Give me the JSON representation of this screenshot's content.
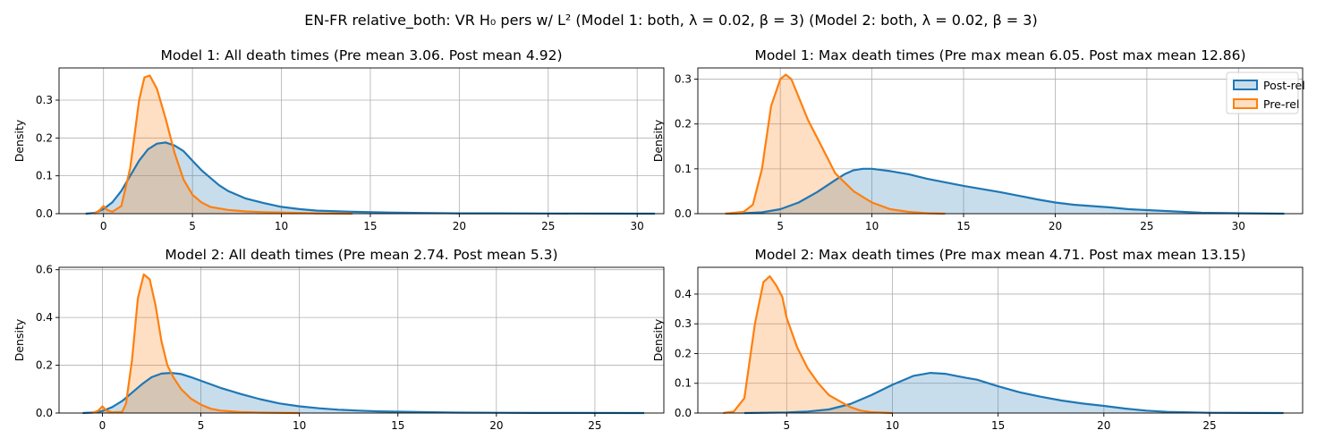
{
  "figure": {
    "suptitle": "EN-FR relative_both: VR H₀ pers w/ L² (Model 1: both, λ = 0.02, β = 3) (Model 2: both, λ = 0.02, β = 3)"
  },
  "colors": {
    "post": "#1f77b4",
    "pre": "#ff7f0e",
    "grid": "#b0b0b0"
  },
  "chart_data": [
    {
      "type": "area",
      "title": "Model 1: All death times (Pre mean 3.06. Post mean 4.92)",
      "xlabel": "",
      "ylabel": "Density",
      "xlim": [
        -2.5,
        31.5
      ],
      "ylim": [
        0,
        0.385
      ],
      "xticks": [
        0,
        5,
        10,
        15,
        20,
        25,
        30
      ],
      "yticks": [
        0.0,
        0.1,
        0.2,
        0.3
      ],
      "grid": true,
      "legend": null,
      "series": [
        {
          "key": "post",
          "name": "Post-rel",
          "x": [
            -1,
            -0.5,
            0,
            0.5,
            1,
            1.5,
            2,
            2.5,
            3,
            3.5,
            4,
            4.5,
            5,
            5.5,
            6,
            6.5,
            7,
            8,
            9,
            10,
            11,
            12,
            14,
            16,
            18,
            20,
            22,
            25,
            28,
            31
          ],
          "y": [
            0,
            0.002,
            0.012,
            0.03,
            0.06,
            0.1,
            0.14,
            0.17,
            0.185,
            0.188,
            0.18,
            0.165,
            0.14,
            0.115,
            0.095,
            0.075,
            0.06,
            0.04,
            0.028,
            0.018,
            0.012,
            0.008,
            0.005,
            0.003,
            0.002,
            0.001,
            0.001,
            0.0005,
            0.0002,
            0
          ]
        },
        {
          "key": "pre",
          "name": "Pre-rel",
          "x": [
            -0.5,
            -0.2,
            0,
            0.2,
            0.5,
            1,
            1.5,
            2,
            2.3,
            2.6,
            3,
            3.5,
            4,
            4.5,
            5,
            5.5,
            6,
            7,
            8,
            9,
            10,
            12,
            14
          ],
          "y": [
            0,
            0.01,
            0.02,
            0.01,
            0.005,
            0.02,
            0.12,
            0.3,
            0.36,
            0.365,
            0.33,
            0.25,
            0.16,
            0.09,
            0.05,
            0.03,
            0.018,
            0.01,
            0.006,
            0.004,
            0.003,
            0.001,
            0
          ]
        }
      ]
    },
    {
      "type": "area",
      "title": "Model 1: Max death times (Pre max mean 6.05. Post max mean 12.86)",
      "xlabel": "",
      "ylabel": "Density",
      "xlim": [
        0.5,
        33.5
      ],
      "ylim": [
        0,
        0.325
      ],
      "xticks": [
        5,
        10,
        15,
        20,
        25,
        30
      ],
      "yticks": [
        0.0,
        0.1,
        0.2,
        0.3
      ],
      "grid": true,
      "legend": "top-right",
      "series": [
        {
          "key": "post",
          "name": "Post-rel",
          "x": [
            2,
            3,
            4,
            5,
            6,
            7,
            8,
            8.5,
            9,
            9.5,
            10,
            11,
            12,
            13,
            14,
            15,
            16,
            17,
            18,
            19,
            20,
            21,
            22,
            23,
            24,
            25,
            26,
            27,
            28,
            30,
            32.5
          ],
          "y": [
            0,
            0.001,
            0.003,
            0.01,
            0.025,
            0.048,
            0.075,
            0.088,
            0.097,
            0.1,
            0.1,
            0.095,
            0.088,
            0.078,
            0.07,
            0.062,
            0.055,
            0.048,
            0.04,
            0.032,
            0.025,
            0.02,
            0.017,
            0.014,
            0.01,
            0.008,
            0.006,
            0.004,
            0.002,
            0.001,
            0
          ]
        },
        {
          "key": "pre",
          "name": "Pre-rel",
          "x": [
            2,
            3,
            3.5,
            4,
            4.5,
            5,
            5.3,
            5.6,
            6,
            6.5,
            7,
            7.5,
            8,
            8.5,
            9,
            10,
            11,
            12,
            13,
            14
          ],
          "y": [
            0,
            0.004,
            0.02,
            0.1,
            0.24,
            0.3,
            0.31,
            0.3,
            0.26,
            0.21,
            0.17,
            0.13,
            0.09,
            0.07,
            0.05,
            0.025,
            0.01,
            0.004,
            0.001,
            0
          ]
        }
      ]
    },
    {
      "type": "area",
      "title": "Model 2: All death times (Pre mean 2.74. Post mean 5.3)",
      "xlabel": "",
      "ylabel": "Density",
      "xlim": [
        -2.2,
        28.5
      ],
      "ylim": [
        0,
        0.61
      ],
      "xticks": [
        0,
        5,
        10,
        15,
        20,
        25
      ],
      "yticks": [
        0.0,
        0.2,
        0.4,
        0.6
      ],
      "grid": true,
      "legend": null,
      "series": [
        {
          "key": "post",
          "name": "Post-rel",
          "x": [
            -1,
            -0.5,
            0,
            0.5,
            1,
            1.5,
            2,
            2.5,
            3,
            3.5,
            4,
            4.5,
            5,
            5.5,
            6,
            7,
            8,
            9,
            10,
            11,
            12,
            13,
            14,
            16,
            18,
            20,
            22,
            24,
            27.5
          ],
          "y": [
            0,
            0.002,
            0.008,
            0.025,
            0.05,
            0.085,
            0.12,
            0.15,
            0.165,
            0.168,
            0.163,
            0.15,
            0.135,
            0.12,
            0.105,
            0.08,
            0.058,
            0.04,
            0.028,
            0.02,
            0.014,
            0.01,
            0.007,
            0.004,
            0.002,
            0.001,
            0.0005,
            0.0002,
            0
          ]
        },
        {
          "key": "pre",
          "name": "Pre-rel",
          "x": [
            -0.5,
            -0.2,
            0,
            0.2,
            0.5,
            1,
            1.2,
            1.5,
            1.8,
            2.1,
            2.4,
            2.7,
            3,
            3.3,
            3.6,
            4,
            4.5,
            5,
            5.5,
            6,
            7,
            8,
            10
          ],
          "y": [
            0,
            0.01,
            0.028,
            0.01,
            0.003,
            0.005,
            0.04,
            0.22,
            0.48,
            0.58,
            0.56,
            0.45,
            0.3,
            0.2,
            0.15,
            0.1,
            0.06,
            0.035,
            0.018,
            0.01,
            0.004,
            0.002,
            0
          ]
        }
      ]
    },
    {
      "type": "area",
      "title": "Model 2: Max death times (Pre max mean 4.71. Post max mean 13.15)",
      "xlabel": "",
      "ylabel": "Density",
      "xlim": [
        0.8,
        29.4
      ],
      "ylim": [
        0,
        0.49
      ],
      "xticks": [
        5,
        10,
        15,
        20,
        25
      ],
      "yticks": [
        0.0,
        0.1,
        0.2,
        0.3,
        0.4
      ],
      "grid": true,
      "legend": null,
      "series": [
        {
          "key": "post",
          "name": "Post-rel",
          "x": [
            3,
            5,
            6,
            7,
            8,
            9,
            10,
            11,
            11.8,
            12.5,
            13,
            13.5,
            14,
            15,
            16,
            17,
            18,
            19,
            20,
            21,
            22,
            23,
            25,
            28.5
          ],
          "y": [
            0,
            0.002,
            0.005,
            0.012,
            0.03,
            0.06,
            0.095,
            0.125,
            0.135,
            0.132,
            0.125,
            0.118,
            0.112,
            0.09,
            0.07,
            0.055,
            0.042,
            0.032,
            0.024,
            0.015,
            0.008,
            0.004,
            0.001,
            0
          ]
        },
        {
          "key": "pre",
          "name": "Pre-rel",
          "x": [
            2,
            2.5,
            3,
            3.5,
            3.9,
            4.2,
            4.5,
            4.8,
            5,
            5.5,
            6,
            6.5,
            7,
            7.5,
            8,
            8.5,
            9,
            10
          ],
          "y": [
            0,
            0.005,
            0.05,
            0.3,
            0.44,
            0.46,
            0.43,
            0.39,
            0.32,
            0.22,
            0.15,
            0.1,
            0.06,
            0.04,
            0.02,
            0.008,
            0.003,
            0
          ]
        }
      ]
    }
  ]
}
